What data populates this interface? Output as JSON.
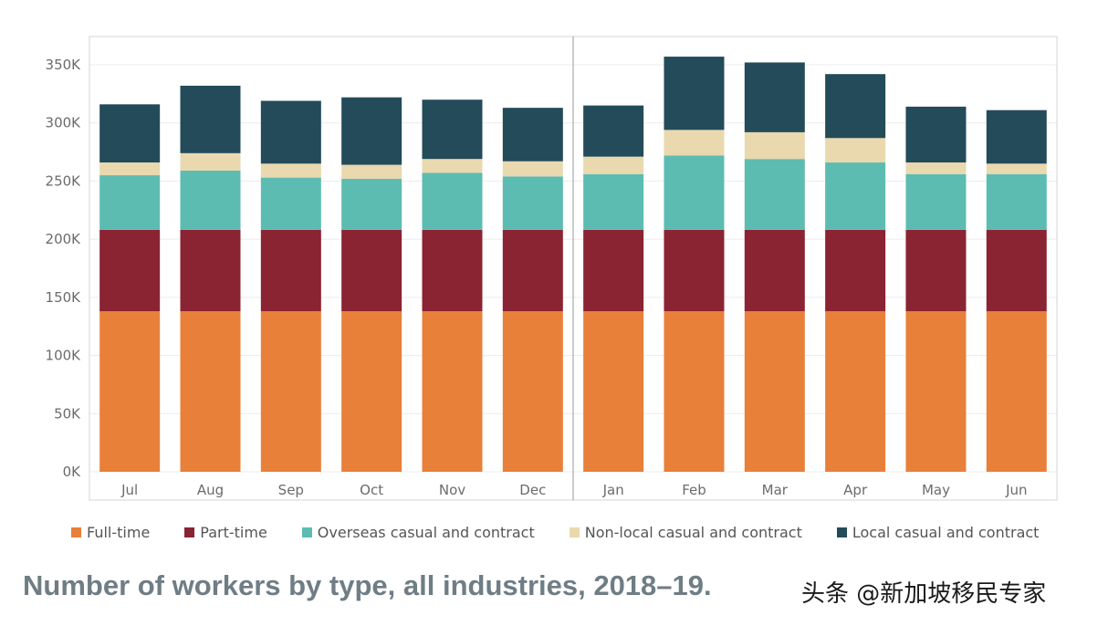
{
  "chart_data": {
    "type": "bar",
    "stacked": true,
    "categories": [
      "Jul",
      "Aug",
      "Sep",
      "Oct",
      "Nov",
      "Dec",
      "Jan",
      "Feb",
      "Mar",
      "Apr",
      "May",
      "Jun"
    ],
    "series": [
      {
        "name": "Full-time",
        "color": "#e8803a",
        "values": [
          138000,
          138000,
          138000,
          138000,
          138000,
          138000,
          138000,
          138000,
          138000,
          138000,
          138000,
          138000
        ]
      },
      {
        "name": "Part-time",
        "color": "#8a2332",
        "values": [
          70000,
          70000,
          70000,
          70000,
          70000,
          70000,
          70000,
          70000,
          70000,
          70000,
          70000,
          70000
        ]
      },
      {
        "name": "Overseas casual and contract",
        "color": "#5cbcb1",
        "values": [
          47000,
          51000,
          45000,
          44000,
          49000,
          46000,
          48000,
          64000,
          61000,
          58000,
          48000,
          48000
        ]
      },
      {
        "name": "Non-local casual and contract",
        "color": "#ead8ae",
        "values": [
          11000,
          15000,
          12000,
          12000,
          12000,
          13000,
          15000,
          22000,
          23000,
          21000,
          10000,
          9000
        ]
      },
      {
        "name": "Local casual and contract",
        "color": "#234b5a",
        "values": [
          50000,
          58000,
          54000,
          58000,
          51000,
          46000,
          44000,
          63000,
          60000,
          55000,
          48000,
          46000
        ]
      }
    ],
    "ylim": [
      0,
      350000
    ],
    "yticks": [
      "0K",
      "50K",
      "100K",
      "150K",
      "200K",
      "250K",
      "300K",
      "350K"
    ],
    "grid": true,
    "legend_position": "bottom",
    "title": "Number of workers by type, all industries, 2018–19."
  },
  "watermark": "头条 @新加坡移民专家"
}
